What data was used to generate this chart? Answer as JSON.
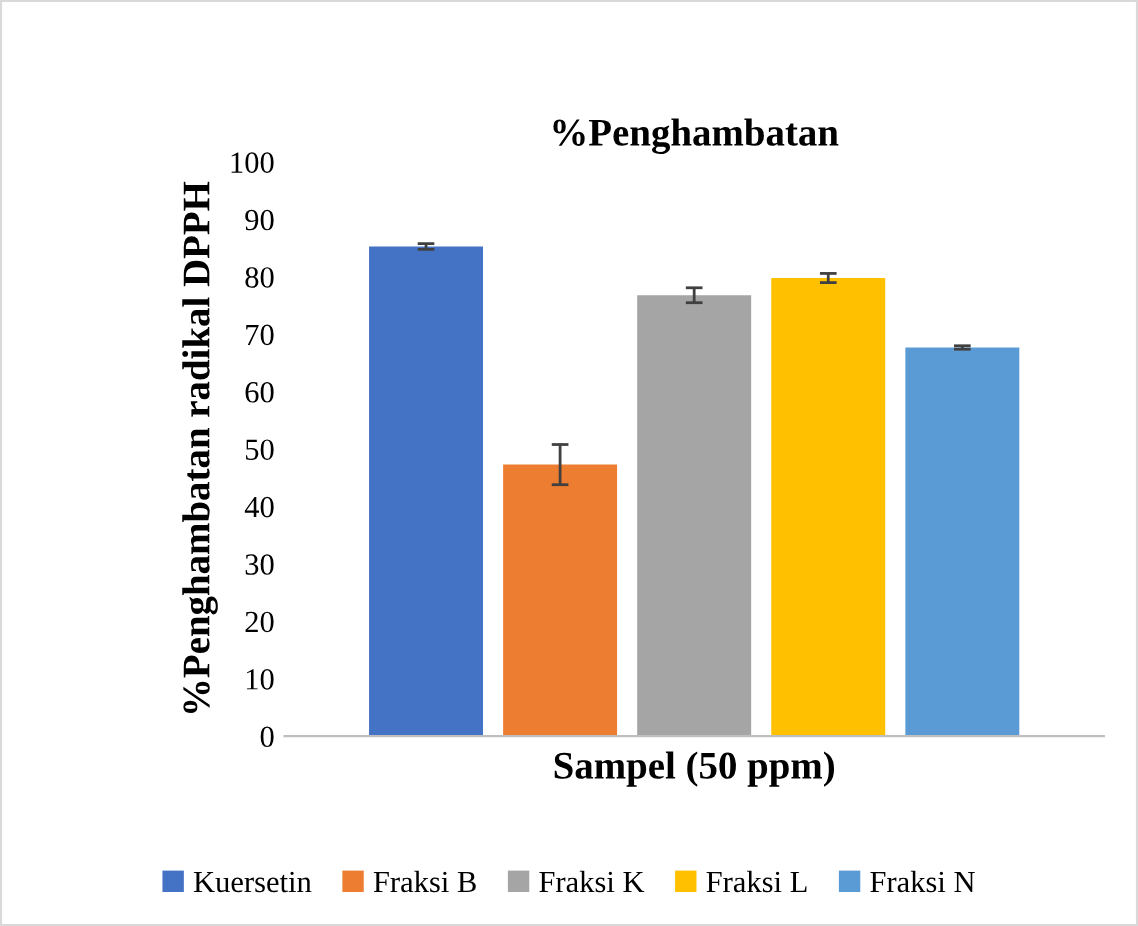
{
  "chart_data": {
    "type": "bar",
    "title": "%Penghambatan",
    "xlabel": "Sampel (50 ppm)",
    "ylabel": "%Penghambatan radikal DPPH",
    "categories": [
      null
    ],
    "series": [
      {
        "name": "Kuersetin",
        "color": "#4472c4",
        "values": [
          85.3
        ],
        "errors": [
          0.5
        ]
      },
      {
        "name": "Fraksi B",
        "color": "#ed7d31",
        "values": [
          47.3
        ],
        "errors": [
          3.5
        ]
      },
      {
        "name": "Fraksi K",
        "color": "#a5a5a5",
        "values": [
          76.8
        ],
        "errors": [
          1.3
        ]
      },
      {
        "name": "Fraksi L",
        "color": "#ffc000",
        "values": [
          79.8
        ],
        "errors": [
          0.8
        ]
      },
      {
        "name": "Fraksi N",
        "color": "#5b9bd5",
        "values": [
          67.7
        ],
        "errors": [
          0.3
        ]
      }
    ],
    "ylim": [
      0,
      100
    ],
    "yticks": [
      0,
      10,
      20,
      30,
      40,
      50,
      60,
      70,
      80,
      90,
      100
    ],
    "grid": false,
    "legend": "bottom"
  }
}
